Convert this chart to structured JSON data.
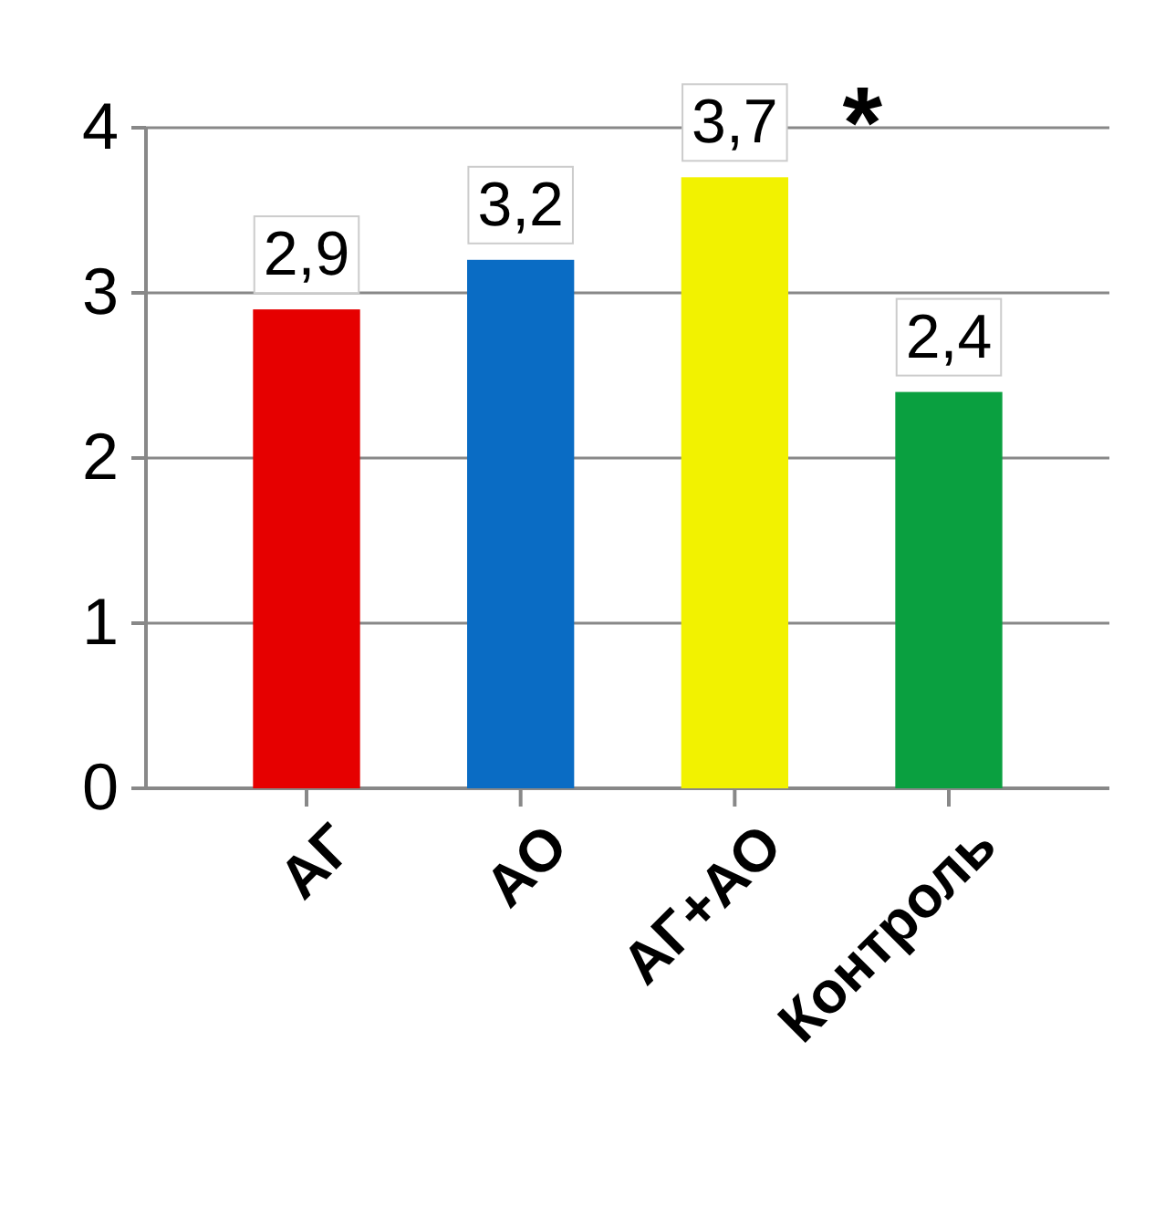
{
  "chart_data": {
    "type": "bar",
    "categories": [
      "АГ",
      "АО",
      "АГ+АО",
      "Контроль"
    ],
    "values": [
      2.9,
      3.2,
      3.7,
      2.4
    ],
    "colors": [
      "#e60000",
      "#0a6cc4",
      "#f2f200",
      "#0aa040"
    ],
    "value_labels": [
      "2,9",
      "3,2",
      "3,7",
      "2,4"
    ],
    "ylim": [
      0,
      4
    ],
    "yticks": [
      0,
      1,
      2,
      3,
      4
    ],
    "grid": "y",
    "annotations": [
      {
        "text": "*",
        "x": "АГ+АО",
        "y": 3.7
      }
    ]
  }
}
